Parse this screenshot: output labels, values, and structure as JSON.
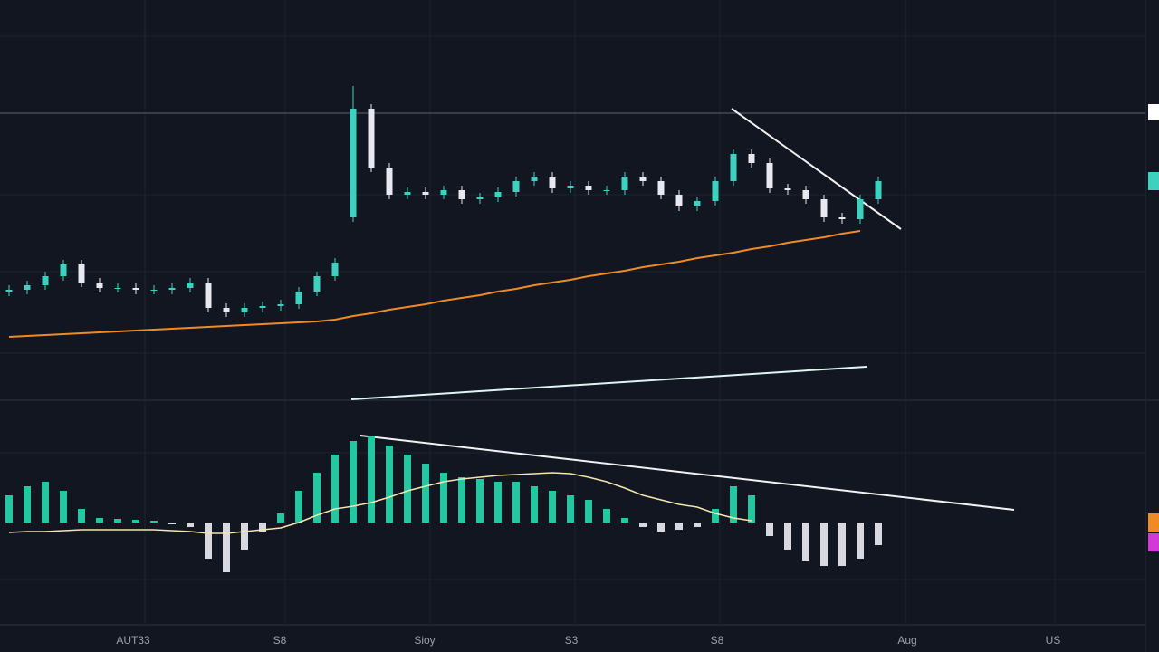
{
  "chart_data": [
    {
      "type": "candlestick",
      "open": [
        118,
        120,
        125,
        135,
        148,
        128,
        122,
        122,
        120,
        120,
        122,
        128,
        100,
        95,
        100,
        102,
        104,
        118,
        135,
        200,
        320,
        255,
        225,
        228,
        225,
        230,
        220,
        222,
        228,
        240,
        245,
        232,
        235,
        230,
        230,
        245,
        240,
        225,
        212,
        218,
        240,
        270,
        260,
        232,
        230,
        220,
        200,
        198,
        220
      ],
      "high": [
        125,
        130,
        140,
        153,
        153,
        133,
        127,
        127,
        125,
        127,
        133,
        133,
        105,
        105,
        107,
        109,
        123,
        140,
        155,
        345,
        325,
        260,
        233,
        233,
        235,
        235,
        227,
        233,
        245,
        250,
        250,
        240,
        240,
        235,
        250,
        250,
        245,
        230,
        223,
        245,
        275,
        275,
        265,
        237,
        235,
        225,
        205,
        225,
        245
      ],
      "low": [
        113,
        115,
        120,
        130,
        123,
        117,
        117,
        115,
        115,
        115,
        117,
        95,
        90,
        90,
        95,
        97,
        99,
        113,
        130,
        195,
        250,
        220,
        220,
        220,
        220,
        215,
        215,
        217,
        223,
        235,
        227,
        227,
        225,
        225,
        225,
        235,
        220,
        207,
        207,
        213,
        235,
        255,
        227,
        225,
        215,
        195,
        193,
        193,
        215
      ],
      "close": [
        120,
        125,
        135,
        148,
        128,
        122,
        122,
        120,
        120,
        122,
        128,
        100,
        95,
        100,
        102,
        104,
        118,
        135,
        150,
        320,
        255,
        225,
        228,
        225,
        230,
        220,
        222,
        228,
        240,
        245,
        232,
        235,
        230,
        230,
        245,
        240,
        225,
        212,
        218,
        240,
        270,
        260,
        232,
        230,
        220,
        200,
        198,
        220,
        240
      ],
      "up_color": "#3fd1c0",
      "down_color": "#e8e8ee",
      "ma_values": [
        68,
        69,
        70,
        71,
        72,
        73,
        74,
        75,
        76,
        77,
        78,
        79,
        80,
        81,
        82,
        83,
        84,
        85,
        87,
        91,
        94,
        98,
        101,
        104,
        108,
        111,
        114,
        118,
        121,
        125,
        128,
        131,
        135,
        138,
        141,
        145,
        148,
        151,
        155,
        158,
        161,
        165,
        168,
        172,
        175,
        178,
        182,
        185,
        null
      ],
      "ma_color": "#f08a24",
      "xlim": [
        -0.5,
        62.75
      ],
      "ylim": [
        0,
        440
      ]
    },
    {
      "type": "histogram",
      "values": [
        30,
        40,
        45,
        35,
        15,
        5,
        4,
        3,
        2,
        -2,
        -5,
        -40,
        -55,
        -30,
        -10,
        10,
        35,
        55,
        75,
        90,
        95,
        85,
        75,
        65,
        55,
        50,
        48,
        45,
        45,
        40,
        35,
        30,
        25,
        15,
        5,
        -5,
        -10,
        -8,
        -5,
        15,
        40,
        30,
        -15,
        -30,
        -42,
        -48,
        -48,
        -40,
        -25
      ],
      "pos_color": "#26c6a0",
      "neg_color": "#d8d8e0",
      "signal": [
        -11,
        -10,
        -10,
        -9,
        -8,
        -8,
        -8,
        -8,
        -8,
        -9,
        -10,
        -12,
        -12,
        -10,
        -8,
        -6,
        0,
        8,
        15,
        18,
        22,
        28,
        35,
        40,
        45,
        48,
        50,
        52,
        53,
        54,
        55,
        54,
        50,
        45,
        38,
        30,
        25,
        20,
        17,
        10,
        5,
        2,
        null,
        null,
        null,
        null,
        null,
        null,
        null
      ],
      "signal_color": "#f3e6b0",
      "xlim": [
        -0.5,
        62.75
      ],
      "ylim": [
        -70,
        110
      ],
      "xticks": [
        {
          "value": 6.85,
          "label": "AUT33"
        },
        {
          "value": 14.95,
          "label": "S8"
        },
        {
          "value": 22.95,
          "label": "Sioy"
        },
        {
          "value": 31.05,
          "label": "S3"
        },
        {
          "value": 39.1,
          "label": "S8"
        },
        {
          "value": 49.6,
          "label": "Aug"
        },
        {
          "value": 57.65,
          "label": "US"
        }
      ]
    }
  ]
}
